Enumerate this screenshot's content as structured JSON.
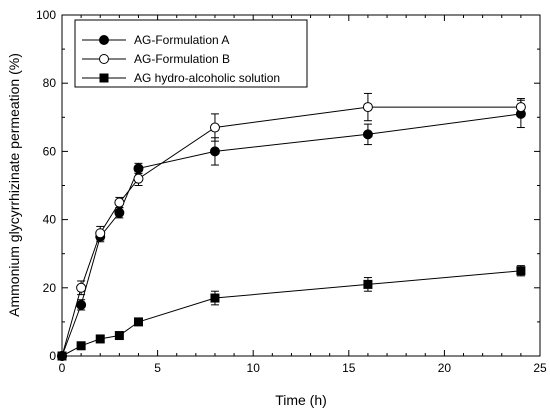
{
  "chart_data": {
    "type": "line",
    "xlabel": "Time (h)",
    "ylabel": "Ammonium glycyrrhizinate permeation (%)",
    "xlim": [
      0,
      25
    ],
    "ylim": [
      0,
      100
    ],
    "xticks": [
      0,
      5,
      10,
      15,
      20,
      25
    ],
    "yticks": [
      0,
      20,
      40,
      60,
      80,
      100
    ],
    "grid": false,
    "legend": "top-left",
    "series": [
      {
        "name": "AG-Formulation A",
        "marker": "filled-circle",
        "color": "#000000",
        "x": [
          0,
          1,
          2,
          3,
          4,
          8,
          16,
          24
        ],
        "y": [
          0,
          15,
          35,
          42,
          55,
          60,
          65,
          71
        ],
        "err": [
          0,
          1.5,
          1.5,
          1.5,
          1.5,
          4,
          3,
          4
        ]
      },
      {
        "name": "AG-Formulation B",
        "marker": "open-circle",
        "color": "#000000",
        "x": [
          0,
          1,
          2,
          3,
          4,
          8,
          16,
          24
        ],
        "y": [
          0,
          20,
          36,
          45,
          52,
          67,
          73,
          73
        ],
        "err": [
          0,
          2,
          2,
          1.5,
          2,
          4,
          4,
          2.5
        ]
      },
      {
        "name": "AG hydro-alcoholic solution",
        "marker": "filled-square",
        "color": "#000000",
        "x": [
          0,
          1,
          2,
          3,
          4,
          8,
          16,
          24
        ],
        "y": [
          0,
          3,
          5,
          6,
          10,
          17,
          21,
          25
        ],
        "err": [
          0,
          0.5,
          0.5,
          0.5,
          1,
          2,
          2,
          1.5
        ]
      }
    ]
  }
}
